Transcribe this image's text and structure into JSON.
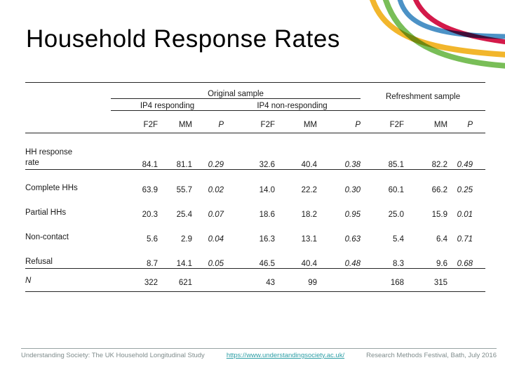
{
  "slide": {
    "title": "Household Response Rates"
  },
  "decoration": {
    "swoosh_colors": {
      "yellow": "#F2B62C",
      "green": "#79BE58",
      "blue": "#4C92C6",
      "red": "#D31A4A"
    }
  },
  "table": {
    "group_headers": {
      "original": "Original sample",
      "refreshment": "Refreshment sample",
      "ip4_responding": "IP4 responding",
      "ip4_non_responding": "IP4 non-responding"
    },
    "column_headers": [
      "F2F",
      "MM",
      "P",
      "F2F",
      "MM",
      "P",
      "F2F",
      "MM",
      "P"
    ],
    "rows": [
      {
        "label": "HH response\nrate",
        "values": [
          "84.1",
          "81.1",
          "0.29",
          "32.6",
          "40.4",
          "0.38",
          "85.1",
          "82.2",
          "0.49"
        ]
      },
      {
        "label": "Complete HHs",
        "values": [
          "63.9",
          "55.7",
          "0.02",
          "14.0",
          "22.2",
          "0.30",
          "60.1",
          "66.2",
          "0.25"
        ]
      },
      {
        "label": "Partial HHs",
        "values": [
          "20.3",
          "25.4",
          "0.07",
          "18.6",
          "18.2",
          "0.95",
          "25.0",
          "15.9",
          "0.01"
        ]
      },
      {
        "label": "Non-contact",
        "values": [
          "5.6",
          "2.9",
          "0.04",
          "16.3",
          "13.1",
          "0.63",
          "5.4",
          "6.4",
          "0.71"
        ]
      },
      {
        "label": "Refusal",
        "values": [
          "8.7",
          "14.1",
          "0.05",
          "46.5",
          "40.4",
          "0.48",
          "8.3",
          "9.6",
          "0.68"
        ]
      },
      {
        "label": "N",
        "label_italic": true,
        "values": [
          "322",
          "621",
          "",
          "43",
          "99",
          "",
          "168",
          "315",
          ""
        ]
      }
    ]
  },
  "footer": {
    "study": "Understanding Society: The UK Household Longitudinal Study",
    "link": "https://www.understandingsociety.ac.uk/",
    "event": "Research Methods Festival, Bath, July 2016"
  }
}
